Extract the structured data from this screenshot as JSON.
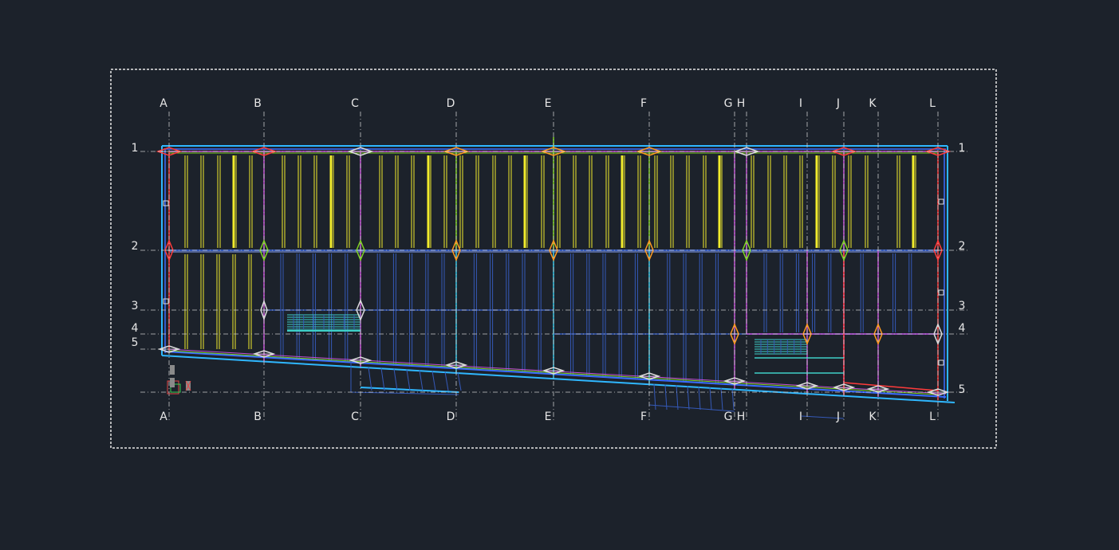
{
  "colors": {
    "background": "#1c222b",
    "sheet_border": "#e6e6e6",
    "grid_label": "#e6e6e6",
    "grid_line": "#c8c8c8",
    "outline_cyan": "#2fb7ff",
    "outline_blue": "#3a6cff",
    "joist_yellow": "#f2ec2c",
    "joist_blue": "#3559b8",
    "beam_magenta": "#c34fd6",
    "beam_red": "#ff3b3b",
    "beam_green": "#7ed321",
    "beam_cyan": "#36c6e6",
    "stair_cyan": "#3ed0c8",
    "column_orange": "#ff9a1f"
  },
  "grid": {
    "columns": [
      "A",
      "B",
      "C",
      "D",
      "E",
      "F",
      "G",
      "H",
      "I",
      "J",
      "K",
      "L"
    ],
    "rows_left": [
      "1",
      "2",
      "3",
      "4",
      "5"
    ],
    "rows_right": [
      "1",
      "2",
      "3",
      "4",
      "5"
    ]
  }
}
